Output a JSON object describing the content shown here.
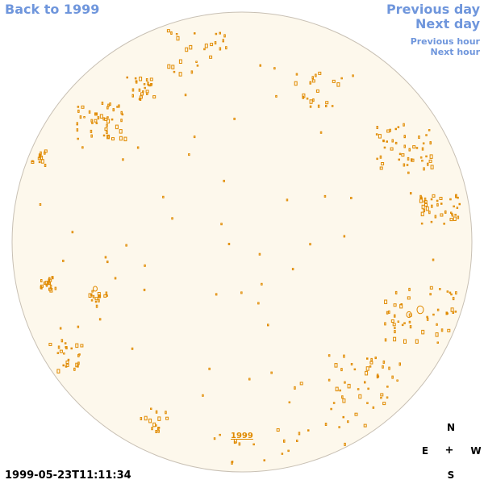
{
  "nav": {
    "back": "Back to 1999",
    "previous_day": "Previous day",
    "next_day": "Next day",
    "previous_hour": "Previous hour",
    "next_hour": "Next hour"
  },
  "timestamp": "1999-05-23T11:11:34",
  "year_label": "1999",
  "compass": {
    "n": "N",
    "s": "S",
    "e": "E",
    "w": "W",
    "center": "+"
  },
  "colors": {
    "link": "#6f96dc",
    "disk_fill": "#fdf8ec",
    "disk_stroke": "#c8c0b4",
    "feature": "#e08a00"
  }
}
